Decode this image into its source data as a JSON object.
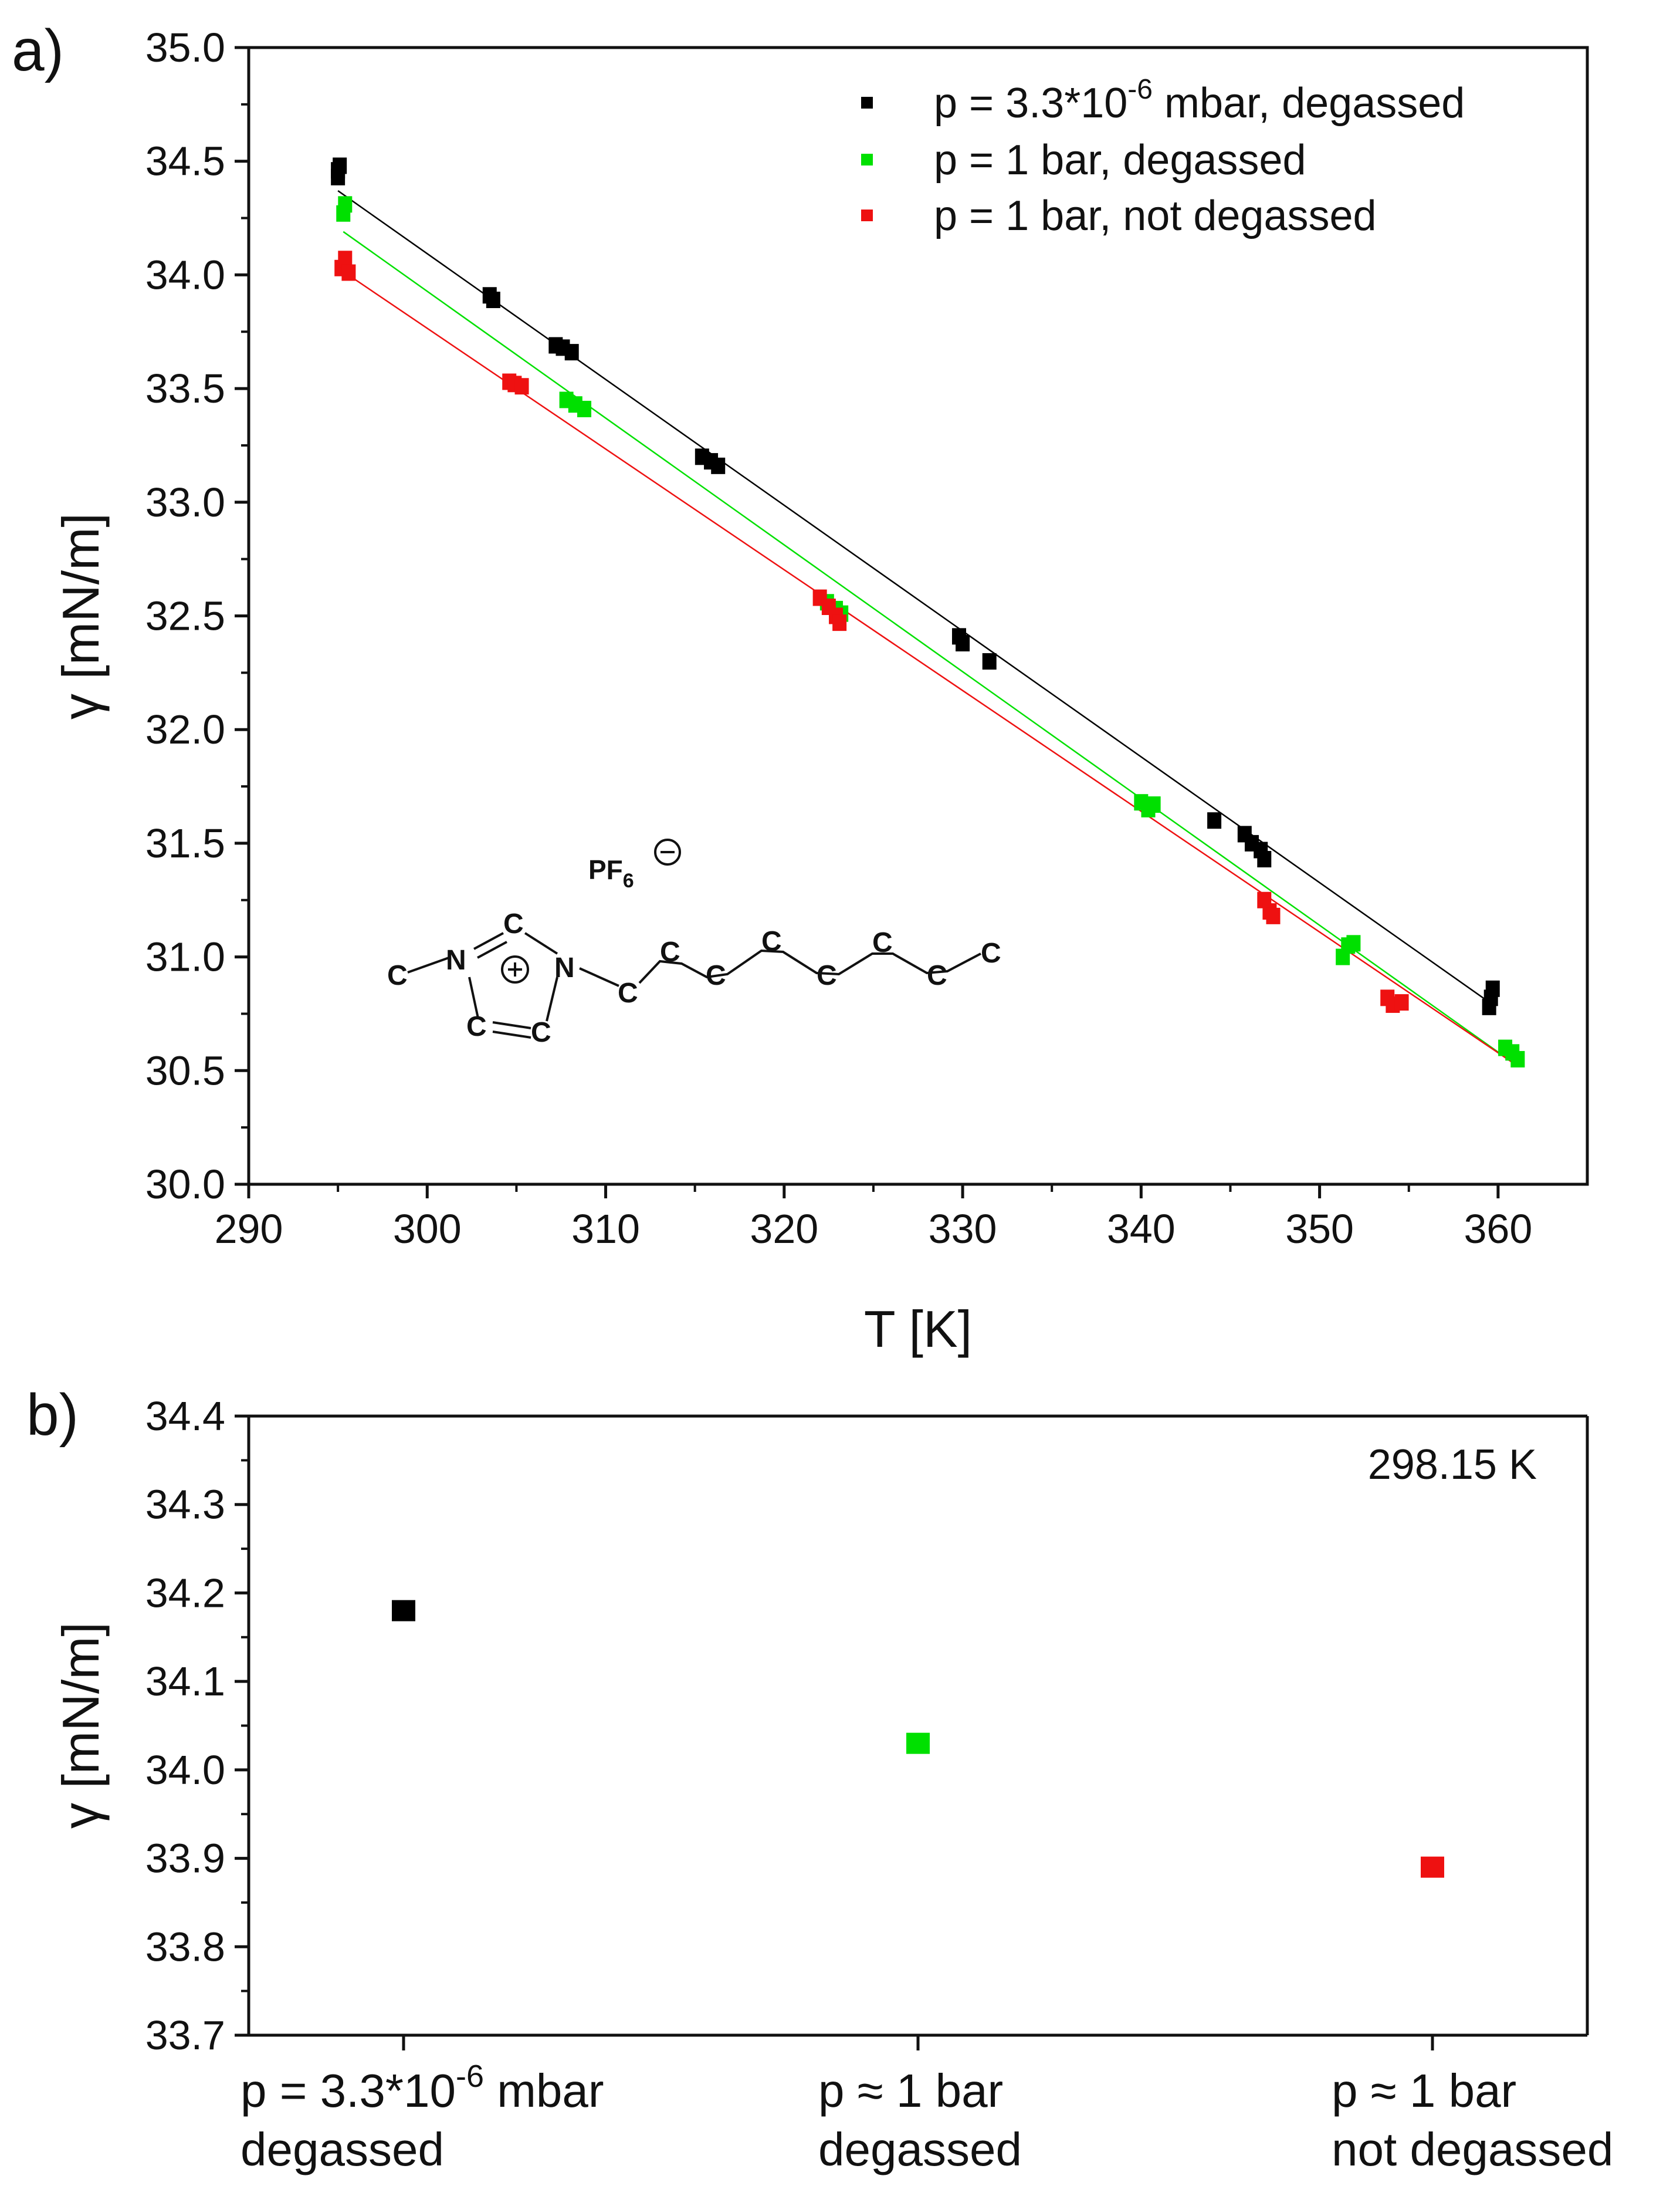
{
  "panel_a": {
    "label": "a)",
    "chart_data": {
      "type": "scatter",
      "title": "",
      "xlabel": "T [K]",
      "ylabel": "γ [mN/m]",
      "xlim": [
        290,
        365
      ],
      "ylim": [
        30.0,
        35.0
      ],
      "x_ticks": [
        290,
        300,
        310,
        320,
        330,
        340,
        350,
        360
      ],
      "y_ticks": [
        30.0,
        30.5,
        31.0,
        31.5,
        32.0,
        32.5,
        33.0,
        33.5,
        34.0,
        34.5,
        35.0
      ],
      "x_tick_labels": [
        "290",
        "300",
        "310",
        "320",
        "330",
        "340",
        "350",
        "360"
      ],
      "y_tick_labels": [
        "30.0",
        "30.5",
        "31.0",
        "31.5",
        "32.0",
        "32.5",
        "33.0",
        "33.5",
        "34.0",
        "34.5",
        "35.0"
      ],
      "legend_position": "top-right",
      "series": [
        {
          "name": "p = 3.3*10-6 mbar, degassed",
          "legend": {
            "pre": "p = 3.3*10",
            "sup": "-6",
            "post": " mbar, degassed"
          },
          "color": "#000000",
          "points": [
            [
              295.0,
              34.43
            ],
            [
              295.0,
              34.46
            ],
            [
              295.1,
              34.48
            ],
            [
              303.5,
              33.91
            ],
            [
              303.7,
              33.89
            ],
            [
              307.2,
              33.69
            ],
            [
              307.6,
              33.68
            ],
            [
              308.1,
              33.66
            ],
            [
              315.4,
              33.2
            ],
            [
              315.9,
              33.18
            ],
            [
              316.3,
              33.16
            ],
            [
              329.8,
              32.41
            ],
            [
              330.0,
              32.38
            ],
            [
              331.5,
              32.3
            ],
            [
              344.1,
              31.6
            ],
            [
              345.8,
              31.54
            ],
            [
              346.2,
              31.5
            ],
            [
              346.7,
              31.47
            ],
            [
              346.9,
              31.43
            ],
            [
              359.5,
              30.78
            ],
            [
              359.6,
              30.82
            ],
            [
              359.7,
              30.86
            ]
          ],
          "fit": {
            "x": [
              295.0,
              359.7
            ],
            "y": [
              34.37,
              30.79
            ]
          }
        },
        {
          "name": "p = 1 bar, degassed",
          "legend": {
            "pre": "p = 1 bar, degassed",
            "sup": "",
            "post": ""
          },
          "color": "#00e000",
          "points": [
            [
              295.3,
              34.27
            ],
            [
              295.4,
              34.31
            ],
            [
              307.8,
              33.45
            ],
            [
              308.3,
              33.43
            ],
            [
              308.8,
              33.41
            ],
            [
              322.4,
              32.56
            ],
            [
              322.9,
              32.53
            ],
            [
              323.2,
              32.51
            ],
            [
              340.0,
              31.68
            ],
            [
              340.4,
              31.65
            ],
            [
              340.7,
              31.67
            ],
            [
              351.3,
              31.0
            ],
            [
              351.6,
              31.05
            ],
            [
              351.9,
              31.06
            ],
            [
              360.4,
              30.6
            ],
            [
              360.8,
              30.58
            ],
            [
              361.1,
              30.55
            ]
          ],
          "fit": {
            "x": [
              295.3,
              361.1
            ],
            "y": [
              34.19,
              30.52
            ]
          }
        },
        {
          "name": "p = 1 bar, not degassed",
          "legend": {
            "pre": "p = 1 bar, not degassed",
            "sup": "",
            "post": ""
          },
          "color": "#ee1111",
          "points": [
            [
              295.2,
              34.03
            ],
            [
              295.4,
              34.07
            ],
            [
              295.6,
              34.01
            ],
            [
              304.6,
              33.53
            ],
            [
              304.9,
              33.52
            ],
            [
              305.3,
              33.51
            ],
            [
              322.0,
              32.58
            ],
            [
              322.5,
              32.54
            ],
            [
              322.9,
              32.5
            ],
            [
              323.1,
              32.47
            ],
            [
              346.9,
              31.25
            ],
            [
              347.2,
              31.2
            ],
            [
              347.4,
              31.18
            ],
            [
              353.8,
              30.82
            ],
            [
              354.1,
              30.79
            ],
            [
              354.6,
              30.8
            ]
          ],
          "fit": {
            "x": [
              295.2,
              361.1
            ],
            "y": [
              34.02,
              30.52
            ]
          }
        }
      ]
    },
    "molecule": {
      "anion": "PF",
      "anion_sub": "6",
      "anion_charge": "⊖",
      "ring_charge": "⊕",
      "atoms": {
        "c_methyl": "C",
        "n1": "N",
        "c2": "C",
        "n3": "N",
        "c4": "C",
        "c5": "C",
        "chain": [
          "C",
          "C",
          "C",
          "C",
          "C",
          "C",
          "C",
          "C"
        ]
      }
    }
  },
  "panel_b": {
    "label": "b)",
    "annotation": "298.15 K",
    "chart_data": {
      "type": "scatter",
      "title": "",
      "xlabel": "",
      "ylabel": "γ [mN/m]",
      "ylim": [
        33.7,
        34.4
      ],
      "y_ticks": [
        33.7,
        33.8,
        33.9,
        34.0,
        34.1,
        34.2,
        34.3,
        34.4
      ],
      "y_tick_labels": [
        "33.7",
        "33.8",
        "33.9",
        "34.0",
        "34.1",
        "34.2",
        "34.3",
        "34.4"
      ],
      "categories": [
        {
          "line1_pre": "p = 3.3*10",
          "line1_sup": "-6",
          "line1_post": " mbar",
          "line2": "degassed"
        },
        {
          "line1_pre": "p ≈ 1 bar",
          "line1_sup": "",
          "line1_post": "",
          "line2": "degassed"
        },
        {
          "line1_pre": "p ≈ 1 bar",
          "line1_sup": "",
          "line1_post": "",
          "line2": "not degassed"
        }
      ],
      "values": [
        34.18,
        34.03,
        33.89
      ],
      "colors": [
        "#000000",
        "#00e000",
        "#ee1111"
      ]
    }
  }
}
